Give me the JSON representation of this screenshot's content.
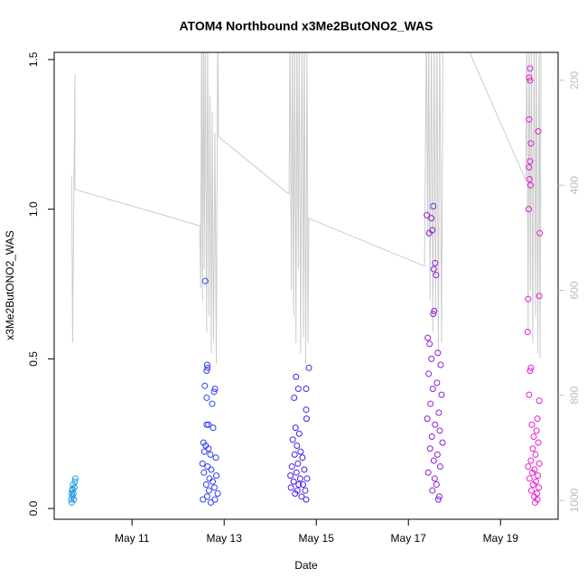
{
  "chart_data": {
    "type": "scatter",
    "title": "ATOM4 Northbound x3Me2ButONO2_WAS",
    "xlabel": "Date",
    "ylabel": "x3Me2ButONO2_WAS",
    "xlim": [
      9.31,
      20.25
    ],
    "xticks": [
      {
        "value": 11,
        "label": "May 11"
      },
      {
        "value": 13,
        "label": "May 13"
      },
      {
        "value": 15,
        "label": "May 15"
      },
      {
        "value": 17,
        "label": "May 17"
      },
      {
        "value": 19,
        "label": "May 19"
      }
    ],
    "ylim": [
      -0.036,
      1.524
    ],
    "yticks": [
      {
        "value": 0,
        "label": "0.0"
      },
      0.5,
      {
        "value": 1,
        "label": "1.0"
      },
      1.5
    ],
    "y2lim": [
      1036,
      147
    ],
    "y2ticks": [
      200,
      400,
      600,
      800,
      1000
    ],
    "y2tick_color": "#bbbbbb",
    "series": [
      {
        "color": "#1f9be0",
        "x": [
          9.69,
          9.68,
          9.71,
          9.73,
          9.7,
          9.75,
          9.72,
          9.76,
          9.77,
          9.74,
          9.69,
          9.71
        ],
        "values": [
          0.02,
          0.03,
          0.04,
          0.05,
          0.06,
          0.07,
          0.08,
          0.09,
          0.1,
          0.03,
          0.05,
          0.065
        ]
      },
      {
        "color": "#2f3ff2",
        "x": [
          12.59,
          12.63,
          12.64,
          12.62,
          12.58,
          12.8,
          12.78,
          12.62,
          12.74,
          12.62,
          12.66,
          12.76,
          12.55,
          12.6,
          12.66,
          12.57,
          12.7,
          12.82,
          12.53,
          12.64,
          12.72,
          12.56,
          12.83,
          12.68,
          12.75,
          12.61,
          12.79,
          12.67,
          12.86,
          12.63,
          12.54,
          12.8,
          12.71
        ],
        "values": [
          0.76,
          0.48,
          0.47,
          0.46,
          0.41,
          0.4,
          0.39,
          0.37,
          0.35,
          0.28,
          0.28,
          0.27,
          0.22,
          0.21,
          0.2,
          0.19,
          0.18,
          0.17,
          0.15,
          0.14,
          0.13,
          0.12,
          0.11,
          0.1,
          0.09,
          0.08,
          0.07,
          0.06,
          0.05,
          0.04,
          0.03,
          0.03,
          0.02
        ]
      },
      {
        "color": "#4a1fe6",
        "x": [
          14.84,
          14.56,
          14.61,
          14.78,
          14.52,
          14.78,
          14.79,
          14.55,
          14.63,
          14.49,
          14.58,
          14.66,
          14.53,
          14.7,
          14.6,
          14.47,
          14.74,
          14.57,
          14.44,
          14.65,
          14.8,
          14.51,
          14.62,
          14.71,
          14.45,
          14.59,
          14.76,
          14.54,
          14.68,
          14.78
        ],
        "values": [
          0.47,
          0.44,
          0.4,
          0.4,
          0.37,
          0.33,
          0.3,
          0.27,
          0.25,
          0.23,
          0.21,
          0.19,
          0.18,
          0.17,
          0.15,
          0.14,
          0.13,
          0.12,
          0.11,
          0.1,
          0.1,
          0.09,
          0.08,
          0.08,
          0.07,
          0.06,
          0.06,
          0.05,
          0.04,
          0.03
        ]
      },
      {
        "color": "#8c1fd6",
        "x": [
          17.54,
          17.4,
          17.5,
          17.52,
          17.45,
          17.58,
          17.55,
          17.6,
          17.56,
          17.54,
          17.42,
          17.46,
          17.64,
          17.5,
          17.7,
          17.44,
          17.62,
          17.53,
          17.72,
          17.48,
          17.66,
          17.41,
          17.58,
          17.68,
          17.51,
          17.74,
          17.47,
          17.63,
          17.55,
          17.69,
          17.43,
          17.57,
          17.61,
          17.52,
          17.67,
          17.65
        ],
        "values": [
          1.01,
          0.98,
          0.97,
          0.93,
          0.92,
          0.82,
          0.8,
          0.78,
          0.66,
          0.65,
          0.57,
          0.55,
          0.52,
          0.5,
          0.48,
          0.45,
          0.42,
          0.4,
          0.38,
          0.35,
          0.32,
          0.3,
          0.28,
          0.26,
          0.24,
          0.22,
          0.2,
          0.18,
          0.16,
          0.14,
          0.12,
          0.1,
          0.08,
          0.06,
          0.04,
          0.03
        ]
      },
      {
        "color": "#e41fd2",
        "x": [
          19.64,
          19.62,
          19.64,
          19.62,
          19.82,
          19.66,
          19.64,
          19.62,
          19.63,
          19.65,
          19.61,
          19.85,
          19.84,
          19.6,
          19.59,
          19.66,
          19.64,
          19.62,
          19.84,
          19.8,
          19.68,
          19.78,
          19.72,
          19.82,
          19.7,
          19.76,
          19.66,
          19.84,
          19.6,
          19.74,
          19.69,
          19.81,
          19.63,
          19.77,
          19.71,
          19.83,
          19.67,
          19.79,
          19.73,
          19.8,
          19.75
        ],
        "values": [
          1.47,
          1.44,
          1.43,
          1.3,
          1.26,
          1.22,
          1.16,
          1.14,
          1.1,
          1.08,
          1.0,
          0.92,
          0.71,
          0.7,
          0.59,
          0.47,
          0.46,
          0.38,
          0.36,
          0.3,
          0.28,
          0.26,
          0.24,
          0.22,
          0.2,
          0.18,
          0.16,
          0.15,
          0.14,
          0.13,
          0.12,
          0.11,
          0.1,
          0.09,
          0.08,
          0.07,
          0.06,
          0.05,
          0.04,
          0.03,
          0.02
        ]
      },
      {
        "type": "line",
        "axis": "y2",
        "color": "#cccccc",
        "x": [
          9.69,
          9.71,
          9.76,
          9.76,
          12.47,
          12.49,
          12.51,
          12.53,
          12.55,
          12.57,
          12.59,
          12.62,
          12.64,
          12.67,
          12.69,
          12.72,
          12.74,
          12.77,
          12.8,
          12.83,
          12.86,
          12.88,
          14.41,
          14.43,
          14.46,
          14.48,
          14.51,
          14.53,
          14.56,
          14.58,
          14.61,
          14.63,
          14.66,
          14.69,
          14.72,
          14.74,
          14.77,
          14.8,
          14.82,
          14.84,
          17.35,
          17.39,
          17.42,
          17.44,
          17.47,
          17.5,
          17.53,
          17.56,
          17.59,
          17.62,
          17.65,
          17.68,
          17.72,
          17.75,
          18.33,
          19.55,
          19.57,
          19.6,
          19.62,
          19.65,
          19.67,
          19.7,
          19.73,
          19.76,
          19.78,
          19.81,
          19.84,
          19.86,
          19.88
        ],
        "values": [
          382,
          700,
          188,
          408,
          477,
          597,
          100,
          620,
          100,
          560,
          100,
          680,
          100,
          650,
          230,
          720,
          260,
          700,
          300,
          740,
          100,
          308,
          417,
          100,
          600,
          100,
          650,
          100,
          700,
          100,
          560,
          100,
          720,
          100,
          690,
          100,
          740,
          120,
          700,
          463,
          554,
          100,
          500,
          100,
          620,
          100,
          680,
          100,
          640,
          100,
          720,
          100,
          700,
          100,
          147,
          391,
          100,
          680,
          100,
          600,
          100,
          700,
          100,
          650,
          100,
          720,
          100,
          730,
          100
        ]
      }
    ]
  }
}
